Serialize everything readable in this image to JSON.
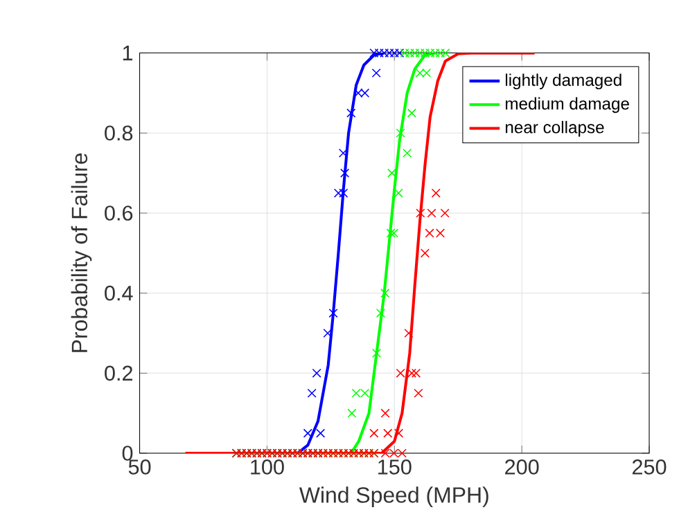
{
  "chart_data": {
    "type": "line",
    "xlabel": "Wind Speed (MPH)",
    "ylabel": "Probability of Failure",
    "xlim": [
      50,
      250
    ],
    "xticks": [
      50,
      100,
      150,
      200,
      250
    ],
    "ylim": [
      0,
      1
    ],
    "yticks": [
      0,
      0.2,
      0.4,
      0.6,
      0.8,
      1
    ],
    "grid": true,
    "legend": "top right",
    "series": [
      {
        "type": "scatter",
        "marker": "cross",
        "color": "#0000ff",
        "x": [
          88,
          90,
          92,
          94,
          96,
          98,
          100,
          102,
          104,
          106,
          108,
          110,
          112,
          114,
          116,
          118,
          120,
          116,
          121,
          117.6,
          119.5,
          123.8,
          126,
          128,
          130,
          130.5,
          129.9,
          133,
          135.8,
          138.4,
          142.9,
          142,
          144,
          146,
          148,
          150,
          152
        ],
        "values": [
          0,
          0,
          0,
          0,
          0,
          0,
          0,
          0,
          0,
          0,
          0,
          0,
          0,
          0,
          0,
          0,
          0,
          0.05,
          0.05,
          0.15,
          0.2,
          0.3,
          0.35,
          0.65,
          0.65,
          0.7,
          0.75,
          0.85,
          0.9,
          0.9,
          0.95,
          1,
          1,
          1,
          1,
          1,
          1
        ]
      },
      {
        "type": "scatter",
        "marker": "cross",
        "color": "#00ff00",
        "x": [
          88,
          90,
          92,
          94,
          96,
          98,
          100,
          102,
          104,
          106,
          108,
          110,
          112,
          114,
          116,
          118,
          120,
          122,
          124,
          126,
          128,
          130,
          132,
          134,
          136,
          138,
          140,
          142,
          133.3,
          135,
          138.4,
          143,
          144.6,
          146.3,
          148.6,
          149.8,
          151.6,
          149,
          155,
          152.4,
          156.8,
          160,
          162.6,
          154,
          156,
          158,
          160,
          162,
          164,
          166,
          168,
          170
        ],
        "values": [
          0,
          0,
          0,
          0,
          0,
          0,
          0,
          0,
          0,
          0,
          0,
          0,
          0,
          0,
          0,
          0,
          0,
          0,
          0,
          0,
          0,
          0,
          0,
          0,
          0,
          0,
          0,
          0,
          0.1,
          0.15,
          0.15,
          0.25,
          0.35,
          0.4,
          0.55,
          0.55,
          0.65,
          0.7,
          0.75,
          0.8,
          0.85,
          0.95,
          0.95,
          1,
          1,
          1,
          1,
          1,
          1,
          1,
          1,
          1
        ]
      },
      {
        "type": "scatter",
        "marker": "cross",
        "color": "#ff0000",
        "x": [
          88,
          90,
          92,
          94,
          96,
          98,
          100,
          102,
          104,
          106,
          108,
          110,
          112,
          114,
          116,
          118,
          120,
          122,
          124,
          126,
          128,
          130,
          132,
          134,
          136,
          138,
          140,
          142,
          146.4,
          149.8,
          153,
          142,
          147.4,
          151.7,
          146.4,
          159.4,
          152.4,
          156.8,
          158.5,
          155.6,
          162,
          163.8,
          168,
          160.2,
          164.6,
          169.8,
          166.3
        ],
        "values": [
          0,
          0,
          0,
          0,
          0,
          0,
          0,
          0,
          0,
          0,
          0,
          0,
          0,
          0,
          0,
          0,
          0,
          0,
          0,
          0,
          0,
          0,
          0,
          0,
          0,
          0,
          0,
          0,
          0,
          0,
          0,
          0.05,
          0.05,
          0.05,
          0.1,
          0.15,
          0.2,
          0.2,
          0.2,
          0.3,
          0.5,
          0.55,
          0.55,
          0.6,
          0.6,
          0.6,
          0.65
        ]
      },
      {
        "name": "lightly damaged",
        "color": "#0000ff",
        "x": [
          68,
          112,
          116,
          120,
          124,
          126,
          128,
          130,
          132,
          135,
          138,
          142,
          146
        ],
        "values": [
          0,
          0,
          0.02,
          0.08,
          0.22,
          0.35,
          0.5,
          0.66,
          0.8,
          0.92,
          0.97,
          0.995,
          1
        ]
      },
      {
        "name": "medium damage",
        "color": "#00ff00",
        "x": [
          68,
          133,
          136,
          140,
          143,
          146,
          148,
          150,
          152,
          155,
          158,
          162,
          166
        ],
        "values": [
          0,
          0,
          0.03,
          0.1,
          0.25,
          0.4,
          0.53,
          0.66,
          0.78,
          0.9,
          0.96,
          0.995,
          1
        ]
      },
      {
        "name": "near collapse",
        "color": "#ff0000",
        "x": [
          68,
          145,
          150,
          153,
          156,
          158,
          160,
          162,
          164,
          167,
          170,
          175,
          180,
          205
        ],
        "values": [
          0,
          0,
          0.03,
          0.1,
          0.25,
          0.42,
          0.58,
          0.72,
          0.84,
          0.93,
          0.98,
          0.998,
          1,
          1
        ]
      }
    ]
  }
}
